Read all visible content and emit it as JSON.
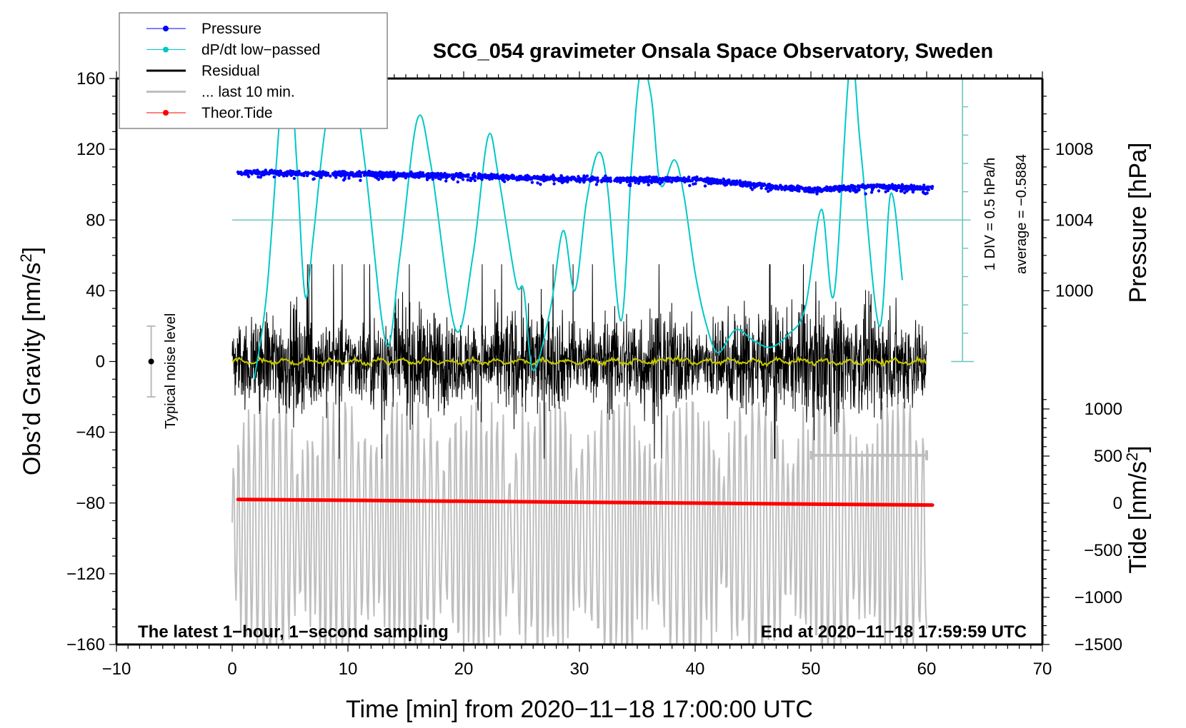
{
  "chart_data": {
    "type": "line",
    "title": "SCG_054 gravimeter Onsala Space Observatory, Sweden",
    "xlabel": "Time [min] from 2020−11−18 17:00:00 UTC",
    "ylabel_left": "Obs’d Gravity [nm/s",
    "ylabel_left_sup": "2",
    "ylabel_left_tail": "]",
    "ylabel_right_pressure": "Pressure [hPa]",
    "ylabel_right_tide": "Tide [nm/s",
    "ylabel_right_tide_sup": "2",
    "ylabel_right_tide_tail": "]",
    "xlim": [
      -10,
      70
    ],
    "ylim": [
      -160,
      160
    ],
    "x_ticks": [
      -10,
      0,
      10,
      20,
      30,
      40,
      50,
      60,
      70
    ],
    "x_tick_labels": [
      "−10",
      "0",
      "10",
      "20",
      "30",
      "40",
      "50",
      "60",
      "70"
    ],
    "y_ticks": [
      160,
      120,
      80,
      40,
      0,
      -40,
      -80,
      -120,
      -160
    ],
    "y_tick_labels": [
      "160",
      "120",
      "80",
      "40",
      "0",
      "−40",
      "−80",
      "−120",
      "−160"
    ],
    "pressure_axis": {
      "ticks": [
        1008,
        1004,
        1000
      ],
      "tick_labels": [
        "1008",
        "1004",
        "1000"
      ],
      "gravity_equiv": [
        120,
        80,
        40
      ]
    },
    "tide_axis": {
      "ylim": [
        -1500,
        1000
      ],
      "ticks": [
        1000,
        500,
        0,
        -500,
        -1000,
        -1500
      ],
      "tick_labels": [
        "1000",
        "500",
        "0",
        "−500",
        "−1000",
        "−1500"
      ]
    },
    "legend": {
      "placement": "top-left",
      "entries": [
        {
          "label": "Pressure",
          "color": "#0000ff",
          "marker": "dot"
        },
        {
          "label": "dP/dt low−passed",
          "color": "#00c8c8",
          "marker": "dot"
        },
        {
          "label": "Residual",
          "color": "#000000",
          "marker": "line"
        },
        {
          "label": "... last 10 min.",
          "color": "#bebebe",
          "marker": "line"
        },
        {
          "label": "Theor.Tide",
          "color": "#ff0000",
          "marker": "dot"
        }
      ]
    },
    "series": [
      {
        "name": "Pressure",
        "color": "#0000ff",
        "unit": "hPa",
        "x_range": [
          0.5,
          60.5
        ],
        "trend_points": {
          "x": [
            0.5,
            10,
            20,
            30,
            40,
            45,
            50,
            55,
            60.5
          ],
          "y": [
            1006.7,
            1006.6,
            1006.5,
            1006.3,
            1006.3,
            1006.0,
            1005.7,
            1005.9,
            1005.8
          ]
        },
        "scatter_spread_hpa": 0.2
      },
      {
        "name": "dP/dt low-passed",
        "color": "#00c8c8",
        "plotted_in": "gravity axis units",
        "x": [
          1.9,
          3.0,
          4.2,
          4.9,
          5.6,
          6.3,
          7.0,
          7.8,
          8.5,
          9.3,
          10.2,
          11.5,
          13.3,
          14.5,
          16.0,
          17.2,
          19.3,
          20.8,
          22.1,
          23.0,
          24.5,
          25.2,
          26.0,
          27.5,
          28.6,
          29.6,
          30.6,
          31.6,
          32.4,
          33.6,
          34.5,
          35.3,
          36.2,
          37.0,
          38.2,
          39.0,
          40.0,
          41.0,
          42.0,
          43.5,
          45.0,
          46.5,
          48.0,
          49.5,
          50.9,
          52.0,
          53.4,
          54.3,
          55.9,
          56.9,
          57.9
        ],
        "y": [
          -10,
          40,
          145,
          175,
          110,
          37,
          70,
          120,
          150,
          165,
          170,
          110,
          10,
          60,
          137,
          110,
          18,
          60,
          127,
          105,
          45,
          40,
          -5,
          30,
          74,
          40,
          90,
          118,
          100,
          23,
          110,
          165,
          150,
          100,
          114,
          95,
          50,
          20,
          5,
          18,
          12,
          8,
          15,
          30,
          86,
          38,
          170,
          120,
          20,
          95,
          46
        ]
      },
      {
        "name": "Residual",
        "color": "#000000",
        "x_range": [
          0,
          60
        ],
        "sampling": "1 s",
        "typical_amplitude": 25,
        "extremes": {
          "max": 65,
          "min": -62
        }
      },
      {
        "name": "Residual smoothed",
        "color": "#c8c800",
        "x_range": [
          0,
          60
        ],
        "level": 0
      },
      {
        "name": "... last 10 min.",
        "color": "#bebebe",
        "plotted_in": "gravity axis units (offset display)",
        "x_range": [
          0,
          60
        ],
        "center": -95,
        "amplitude_range": [
          -160,
          -35
        ]
      },
      {
        "name": "Theor.Tide",
        "color": "#ff0000",
        "unit": "nm/s^2",
        "x": [
          0.5,
          60.5
        ],
        "y": [
          40,
          -20
        ]
      }
    ],
    "annotations": {
      "noise_marker": {
        "label": "Typical noise level",
        "x": -7,
        "center": 0,
        "halfwidth": 20
      },
      "last10_bar": {
        "x_start": 50,
        "x_end": 60,
        "y": -53
      },
      "dpdt_scale": {
        "label": "1 DIV = 0.5 hPa/h",
        "x": 63.1,
        "from": 0,
        "to": 160,
        "divisions": 10
      },
      "dpdt_average": {
        "label": "average = −0.5884",
        "y": 80,
        "x_start": 0,
        "x_end": 63.8
      },
      "bottom_left_note": "The latest 1−hour, 1−second sampling",
      "bottom_right_note": "End at 2020−11−18 17:59:59 UTC"
    }
  }
}
